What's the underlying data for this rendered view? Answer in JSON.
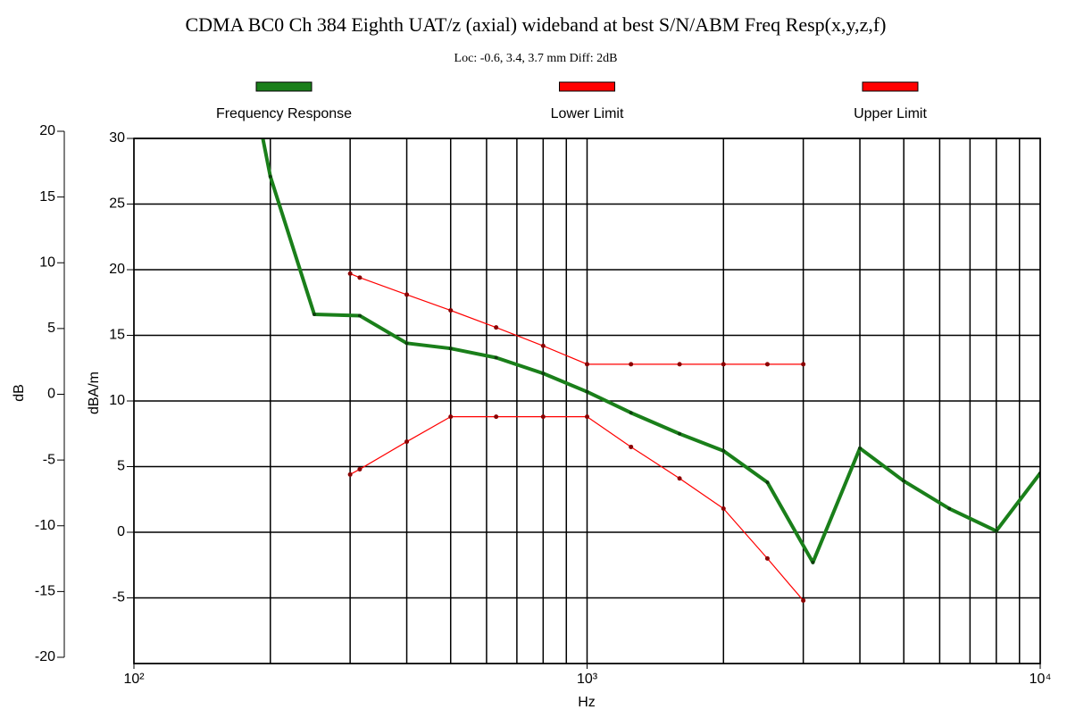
{
  "chart_data": {
    "type": "line",
    "title": "CDMA BC0 Ch 384 Eighth UAT/z (axial) wideband at best S/N/ABM Freq Resp(x,y,z,f)",
    "subtitle": "Loc: -0.6, 3.4, 3.7 mm Diff: 2dB",
    "xlabel": "Hz",
    "ylabel": "dBA/m",
    "y2label": "dB",
    "xscale": "log",
    "xlim": [
      100,
      10000
    ],
    "xticks": [
      {
        "value": 100,
        "label": "10²"
      },
      {
        "value": 1000,
        "label": "10³"
      },
      {
        "value": 10000,
        "label": "10⁴"
      }
    ],
    "xgrid": [
      200,
      300,
      400,
      500,
      600,
      700,
      800,
      900,
      1000,
      2000,
      3000,
      4000,
      5000,
      6000,
      7000,
      8000,
      9000
    ],
    "ylim": [
      -10,
      30
    ],
    "yticks": [
      -5,
      0,
      5,
      10,
      15,
      20,
      25,
      30
    ],
    "y2lim": [
      -20,
      20
    ],
    "y2ticks": [
      -20,
      -15,
      -10,
      -5,
      0,
      5,
      10,
      15,
      20
    ],
    "grid": true,
    "legend": "top",
    "series": [
      {
        "name": "Frequency Response",
        "color": "#1a7f1a",
        "x": [
          190,
          200,
          250,
          315,
          400,
          500,
          630,
          800,
          1000,
          1250,
          1600,
          2000,
          2500,
          3150,
          4000,
          5000,
          6300,
          8000,
          10000
        ],
        "values": [
          31,
          27.1,
          16.6,
          16.5,
          14.4,
          14.0,
          13.3,
          12.1,
          10.7,
          9.1,
          7.5,
          6.2,
          3.8,
          -2.3,
          6.4,
          3.9,
          1.8,
          0.1,
          4.5
        ]
      },
      {
        "name": "Lower Limit",
        "color": "#ff0000",
        "x": [
          300,
          315,
          400,
          500,
          630,
          800,
          1000,
          1250,
          1600,
          2000,
          2500,
          3000
        ],
        "values": [
          4.4,
          4.8,
          6.9,
          8.8,
          8.8,
          8.8,
          8.8,
          6.5,
          4.1,
          1.8,
          -2.0,
          -5.2
        ]
      },
      {
        "name": "Upper Limit",
        "color": "#ff0000",
        "x": [
          300,
          315,
          400,
          500,
          630,
          800,
          1000,
          1250,
          1600,
          2000,
          2500,
          3000
        ],
        "values": [
          19.7,
          19.4,
          18.1,
          16.9,
          15.6,
          14.2,
          12.8,
          12.8,
          12.8,
          12.8,
          12.8,
          12.8
        ]
      }
    ]
  }
}
